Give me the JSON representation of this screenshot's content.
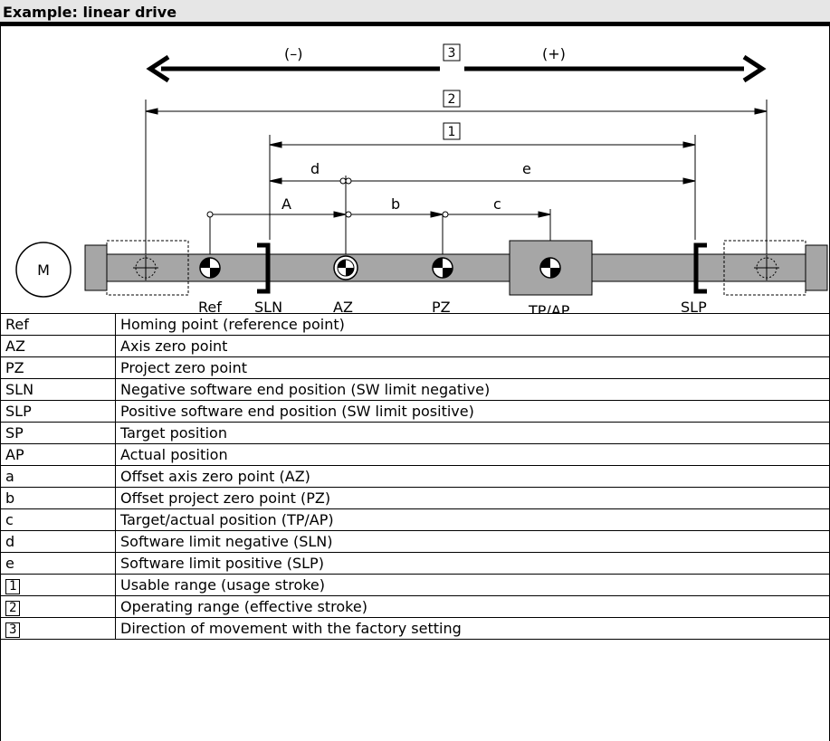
{
  "header": {
    "title": "Example: linear drive"
  },
  "diagram": {
    "direction_negative": "(–)",
    "direction_positive": "(+)",
    "callout_3": "3",
    "callout_2": "2",
    "callout_1": "1",
    "dim_d": "d",
    "dim_e": "e",
    "dim_A": "A",
    "dim_b": "b",
    "dim_c": "c",
    "motor": "M",
    "labels": {
      "ref": "Ref",
      "sln": "SLN",
      "az": "AZ",
      "pz": "PZ",
      "tpap": "TP/AP",
      "slp": "SLP"
    }
  },
  "legend": [
    {
      "key": "Ref",
      "desc": "Homing point (reference point)"
    },
    {
      "key": "AZ",
      "desc": "Axis zero point"
    },
    {
      "key": "PZ",
      "desc": "Project zero point"
    },
    {
      "key": "SLN",
      "desc": "Negative software end position (SW limit negative)"
    },
    {
      "key": "SLP",
      "desc": "Positive software end position (SW limit positive)"
    },
    {
      "key": "SP",
      "desc": "Target position"
    },
    {
      "key": "AP",
      "desc": "Actual position"
    },
    {
      "key": "a",
      "desc": "Offset axis zero point (AZ)"
    },
    {
      "key": "b",
      "desc": "Offset project zero point (PZ)"
    },
    {
      "key": "c",
      "desc": "Target/actual position (TP/AP)"
    },
    {
      "key": "d",
      "desc": "Software limit negative (SLN)"
    },
    {
      "key": "e",
      "desc": "Software limit positive (SLP)"
    },
    {
      "key": "1",
      "desc": "Usable range (usage stroke)"
    },
    {
      "key": "2",
      "desc": "Operating range (effective stroke)"
    },
    {
      "key": "3",
      "desc": "Direction of movement with the factory setting"
    }
  ]
}
